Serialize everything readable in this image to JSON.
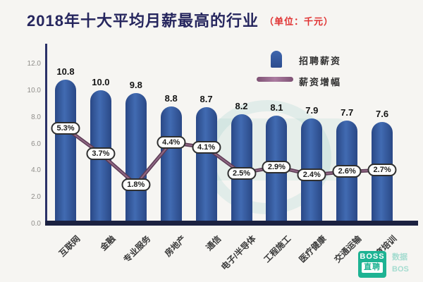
{
  "title": {
    "text": "2018年十大平均月薪最高的行业",
    "unit": "（单位：千元）"
  },
  "legend": {
    "items": [
      {
        "label": "招聘薪资",
        "marker": "bar"
      },
      {
        "label": "薪资增幅",
        "marker": "line"
      }
    ]
  },
  "chart_data": {
    "type": "bar",
    "combo": "bar+line",
    "title": "2018年十大平均月薪最高的行业（单位：千元）",
    "categories": [
      "互联网",
      "金融",
      "专业服务",
      "房地产",
      "通信",
      "电子/半导体",
      "工程施工",
      "医疗健康",
      "交通运输",
      "教育培训"
    ],
    "series": [
      {
        "name": "招聘薪资",
        "type": "bar",
        "unit": "千元",
        "values": [
          10.8,
          10.0,
          9.8,
          8.8,
          8.7,
          8.2,
          8.1,
          7.9,
          7.7,
          7.6
        ],
        "labels": [
          "10.8",
          "10.0",
          "9.8",
          "8.8",
          "8.7",
          "8.2",
          "8.1",
          "7.9",
          "7.7",
          "7.6"
        ]
      },
      {
        "name": "薪资增幅",
        "type": "line",
        "unit": "%",
        "values": [
          5.3,
          3.7,
          1.8,
          4.4,
          4.1,
          2.5,
          2.9,
          2.4,
          2.6,
          2.7
        ],
        "labels": [
          "5.3%",
          "3.7%",
          "1.8%",
          "4.4%",
          "4.1%",
          "2.5%",
          "2.9%",
          "2.4%",
          "2.6%",
          "2.7%"
        ]
      }
    ],
    "y_axis": {
      "ticks": [
        "12.0",
        "10.0",
        "8.0",
        "6.0",
        "4.0",
        "2.0",
        "0.0"
      ],
      "lim": [
        0,
        12
      ],
      "grid": false
    },
    "legend_position": "top-right"
  },
  "colors": {
    "background": "#f6f5f2",
    "bar": "#3a5ea8",
    "bar_edge": "#2a4886",
    "line": "#6a4560",
    "title": "#26265e",
    "unit_red": "#e03131",
    "axis": "#1b2140",
    "tick_text": "#8f8d8a",
    "brand_teal": "#1eb393"
  },
  "branding": {
    "logo_line1": "BOSS",
    "logo_line2": "直聘",
    "caption_line1": "数据",
    "caption_line2": "BOS"
  }
}
